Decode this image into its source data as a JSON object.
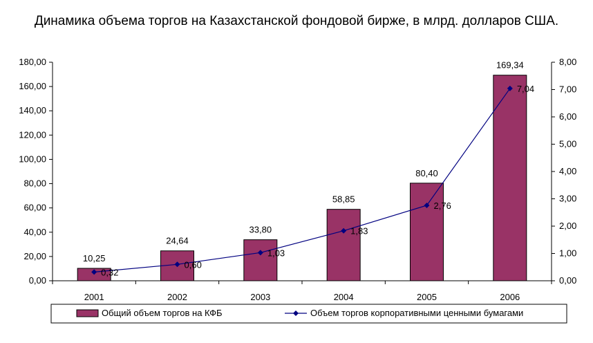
{
  "chart_data": {
    "type": "bar",
    "title": "Динамика объема торгов на Казахстанской фондовой бирже, в млрд. долларов США.",
    "categories": [
      "2001",
      "2002",
      "2003",
      "2004",
      "2005",
      "2006"
    ],
    "series": [
      {
        "name": "Общий объем торгов на КФБ",
        "type": "bar",
        "axis": "left",
        "values": [
          10.25,
          24.64,
          33.8,
          58.85,
          80.4,
          169.34
        ],
        "labels": [
          "10,25",
          "24,64",
          "33,80",
          "58,85",
          "80,40",
          "169,34"
        ],
        "color": "#993366"
      },
      {
        "name": "Объем торгов корпоративными ценными бумагами",
        "type": "line",
        "axis": "right",
        "values": [
          0.32,
          0.6,
          1.03,
          1.83,
          2.76,
          7.04
        ],
        "labels": [
          "0,32",
          "0,60",
          "1,03",
          "1,83",
          "2,76",
          "7,04"
        ],
        "color": "#000080"
      }
    ],
    "y_left": {
      "range": [
        0,
        180
      ],
      "ticks": [
        0,
        20,
        40,
        60,
        80,
        100,
        120,
        140,
        160,
        180
      ],
      "tick_labels": [
        "0,00",
        "20,00",
        "40,00",
        "60,00",
        "80,00",
        "100,00",
        "120,00",
        "140,00",
        "160,00",
        "180,00"
      ]
    },
    "y_right": {
      "range": [
        0,
        8
      ],
      "ticks": [
        0,
        1,
        2,
        3,
        4,
        5,
        6,
        7,
        8
      ],
      "tick_labels": [
        "0,00",
        "1,00",
        "2,00",
        "3,00",
        "4,00",
        "5,00",
        "6,00",
        "7,00",
        "8,00"
      ]
    },
    "xlabel": "",
    "ylabel": "",
    "grid": false,
    "legend_position": "bottom",
    "colors": {
      "bar_fill": "#993366",
      "bar_stroke": "#000000",
      "line": "#000080",
      "axis": "#000000"
    }
  }
}
